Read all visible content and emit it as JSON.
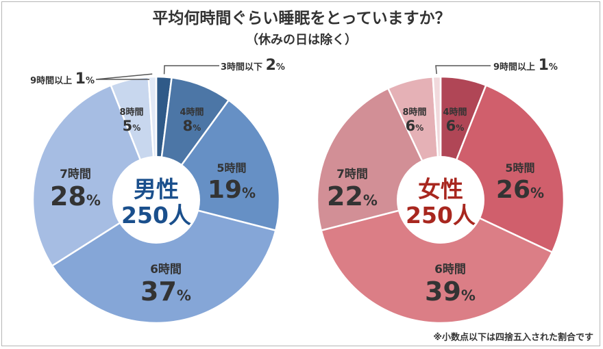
{
  "title": "平均何時間ぐらい睡眠をとっていますか？",
  "subtitle": "（休みの日は除く）",
  "footnote": "※小数点以下は四捨五入された割合です",
  "chart_data": [
    {
      "type": "pie",
      "name": "男性",
      "center_label": "男性",
      "center_count": "250人",
      "center_color": "#1a4f8c",
      "slices": [
        {
          "label": "3時間以下",
          "value": 2,
          "color": "#2f5a88"
        },
        {
          "label": "4時間",
          "value": 8,
          "color": "#4c76a6"
        },
        {
          "label": "5時間",
          "value": 19,
          "color": "#6690c5"
        },
        {
          "label": "6時間",
          "value": 37,
          "color": "#85a6d7"
        },
        {
          "label": "7時間",
          "value": 28,
          "color": "#a6bde3"
        },
        {
          "label": "8時間",
          "value": 5,
          "color": "#c8d7ee"
        },
        {
          "label": "9時間以上",
          "value": 1,
          "color": "#e1e9f6"
        }
      ]
    },
    {
      "type": "pie",
      "name": "女性",
      "center_label": "女性",
      "center_count": "250人",
      "center_color": "#a8271f",
      "slices": [
        {
          "label": "4時間",
          "value": 6,
          "color": "#b04656"
        },
        {
          "label": "5時間",
          "value": 26,
          "color": "#d05f6c"
        },
        {
          "label": "6時間",
          "value": 39,
          "color": "#db7e86"
        },
        {
          "label": "7時間",
          "value": 22,
          "color": "#d28f96"
        },
        {
          "label": "8時間",
          "value": 6,
          "color": "#e5b1b6"
        },
        {
          "label": "9時間以上",
          "value": 1,
          "color": "#f1d9dc"
        }
      ]
    }
  ]
}
